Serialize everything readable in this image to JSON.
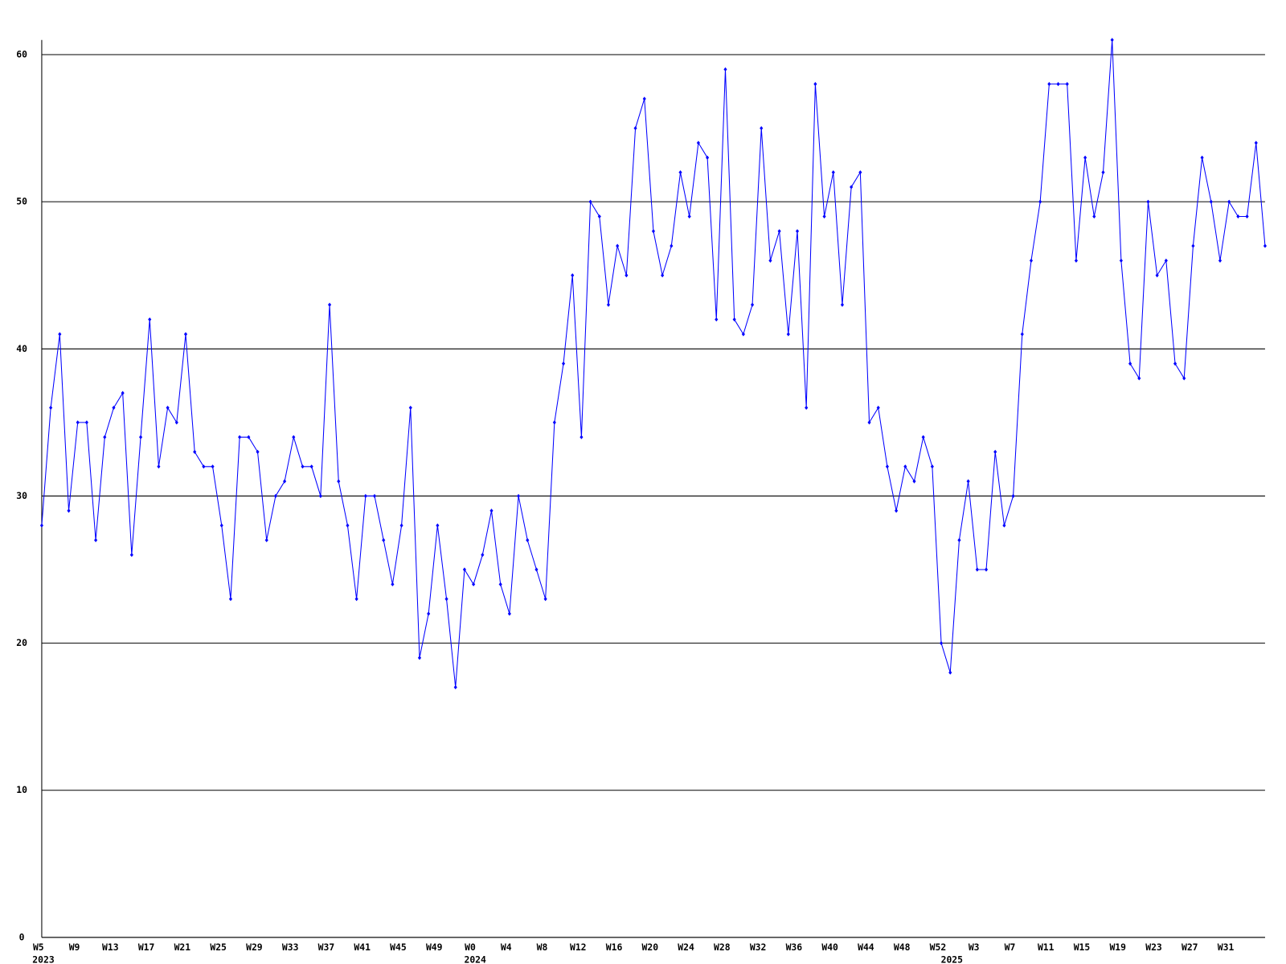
{
  "chart_data": {
    "type": "line",
    "color": "#0000ff",
    "grid": true,
    "ylim": [
      0,
      61
    ],
    "yticks": [
      0,
      10,
      20,
      30,
      40,
      50,
      60
    ],
    "categories": [
      "W5",
      null,
      null,
      null,
      "W9",
      null,
      null,
      null,
      "W13",
      null,
      null,
      null,
      "W17",
      null,
      null,
      null,
      "W21",
      null,
      null,
      null,
      "W25",
      null,
      null,
      null,
      "W29",
      null,
      null,
      null,
      "W33",
      null,
      null,
      null,
      "W37",
      null,
      null,
      null,
      "W41",
      null,
      null,
      null,
      "W45",
      null,
      null,
      null,
      "W49",
      null,
      null,
      null,
      "W0",
      null,
      null,
      null,
      "W4",
      null,
      null,
      null,
      "W8",
      null,
      null,
      null,
      "W12",
      null,
      null,
      null,
      "W16",
      null,
      null,
      null,
      "W20",
      null,
      null,
      null,
      "W24",
      null,
      null,
      null,
      "W28",
      null,
      null,
      null,
      "W32",
      null,
      null,
      null,
      "W36",
      null,
      null,
      null,
      "W40",
      null,
      null,
      null,
      "W44",
      null,
      null,
      null,
      "W48",
      null,
      null,
      null,
      "W52",
      null,
      null,
      null,
      "W3",
      null,
      null,
      null,
      "W7",
      null,
      null,
      null,
      "W11",
      null,
      null,
      null,
      "W15",
      null,
      null,
      null,
      "W19",
      null,
      null,
      null,
      "W23",
      null,
      null,
      null,
      "W27",
      null,
      null,
      null,
      "W31",
      null,
      null,
      null,
      null
    ],
    "years": [
      "2023",
      null,
      null,
      null,
      null,
      null,
      null,
      null,
      null,
      null,
      null,
      null,
      null,
      null,
      null,
      null,
      null,
      null,
      null,
      null,
      null,
      null,
      null,
      null,
      null,
      null,
      null,
      null,
      null,
      null,
      null,
      null,
      null,
      null,
      null,
      null,
      null,
      null,
      null,
      null,
      null,
      null,
      null,
      null,
      null,
      null,
      null,
      null,
      "2024",
      null,
      null,
      null,
      null,
      null,
      null,
      null,
      null,
      null,
      null,
      null,
      null,
      null,
      null,
      null,
      null,
      null,
      null,
      null,
      null,
      null,
      null,
      null,
      null,
      null,
      null,
      null,
      null,
      null,
      null,
      null,
      null,
      null,
      null,
      null,
      null,
      null,
      null,
      null,
      null,
      null,
      null,
      null,
      null,
      null,
      null,
      null,
      null,
      null,
      null,
      null,
      null,
      "2025",
      null,
      null,
      null,
      null,
      null,
      null,
      null,
      null,
      null,
      null,
      null,
      null,
      null,
      null,
      null,
      null,
      null,
      null,
      null,
      null,
      null,
      null,
      null,
      null,
      null,
      null,
      null,
      null,
      null,
      null,
      null,
      null,
      null,
      null,
      null
    ],
    "values": [
      28,
      36,
      41,
      29,
      35,
      35,
      27,
      34,
      36,
      37,
      26,
      34,
      42,
      32,
      36,
      35,
      41,
      33,
      32,
      32,
      28,
      23,
      34,
      34,
      33,
      27,
      30,
      31,
      34,
      32,
      32,
      30,
      43,
      31,
      28,
      23,
      30,
      30,
      27,
      24,
      28,
      36,
      19,
      22,
      28,
      23,
      17,
      25,
      24,
      26,
      29,
      24,
      22,
      30,
      27,
      25,
      23,
      35,
      39,
      45,
      34,
      50,
      49,
      43,
      47,
      45,
      55,
      57,
      48,
      45,
      47,
      52,
      49,
      54,
      53,
      42,
      59,
      42,
      41,
      43,
      55,
      46,
      48,
      41,
      48,
      36,
      58,
      49,
      52,
      43,
      51,
      52,
      35,
      36,
      32,
      29,
      32,
      31,
      34,
      32,
      20,
      18,
      27,
      31,
      25,
      25,
      33,
      28,
      30,
      41,
      46,
      50,
      58,
      58,
      58,
      46,
      53,
      49,
      52,
      61,
      46,
      39,
      38,
      50,
      45,
      46,
      39,
      38,
      47,
      53,
      50,
      46,
      50,
      49,
      49,
      54,
      47
    ]
  }
}
